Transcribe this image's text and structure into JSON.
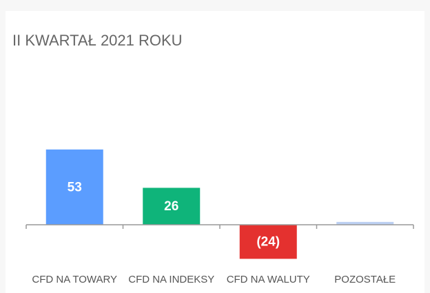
{
  "chart_data": {
    "type": "bar",
    "title": "II KWARTAŁ 2021 ROKU",
    "categories": [
      "CFD NA TOWARY",
      "CFD NA INDEKSY",
      "CFD NA WALUTY",
      "POZOSTAŁE"
    ],
    "values": [
      53,
      26,
      -24,
      2
    ],
    "value_labels": [
      "53",
      "26",
      "(24)",
      null
    ],
    "colors": [
      "#5b9dff",
      "#0fb47a",
      "#e4312f",
      "#bcd0f2"
    ],
    "ylim": [
      -40,
      60
    ]
  }
}
